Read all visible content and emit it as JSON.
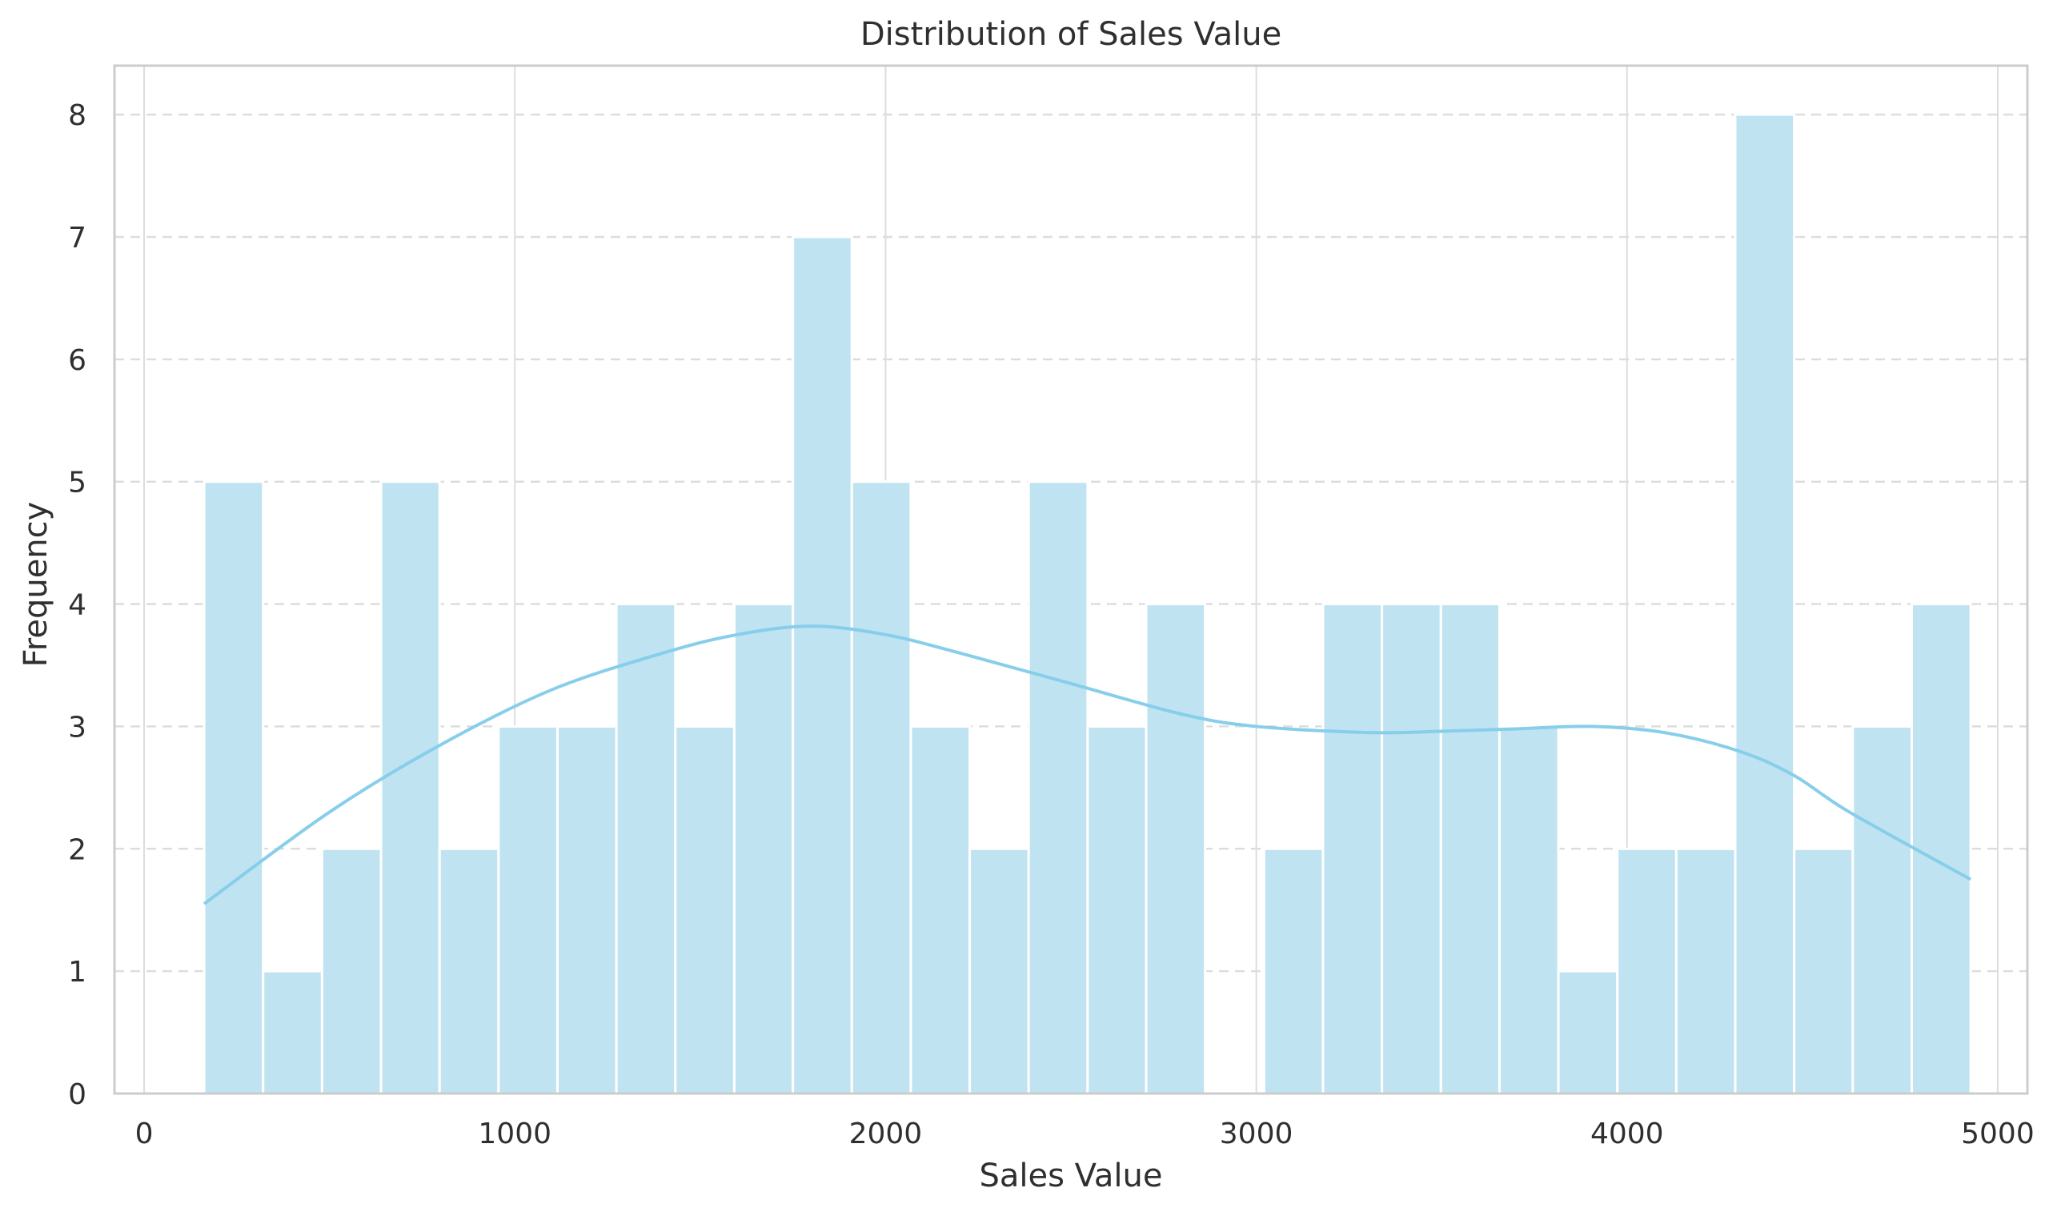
{
  "chart_data": {
    "type": "bar",
    "title": "Distribution of Sales Value",
    "xlabel": "Sales Value",
    "ylabel": "Frequency",
    "xlim": [
      -80,
      5080
    ],
    "ylim": [
      0,
      8.4
    ],
    "xticks": [
      0,
      1000,
      2000,
      3000,
      4000,
      5000
    ],
    "yticks": [
      0,
      1,
      2,
      3,
      4,
      5,
      6,
      7,
      8
    ],
    "grid": true,
    "bar_color": "#bfe3f0",
    "kde_color": "#87ceeb",
    "bins": [
      {
        "x0": 162,
        "x1": 321,
        "count": 5
      },
      {
        "x0": 321,
        "x1": 480,
        "count": 1
      },
      {
        "x0": 480,
        "x1": 639,
        "count": 2
      },
      {
        "x0": 639,
        "x1": 797,
        "count": 5
      },
      {
        "x0": 797,
        "x1": 956,
        "count": 2
      },
      {
        "x0": 956,
        "x1": 1115,
        "count": 3
      },
      {
        "x0": 1115,
        "x1": 1274,
        "count": 3
      },
      {
        "x0": 1274,
        "x1": 1433,
        "count": 4
      },
      {
        "x0": 1433,
        "x1": 1592,
        "count": 3
      },
      {
        "x0": 1592,
        "x1": 1750,
        "count": 4
      },
      {
        "x0": 1750,
        "x1": 1909,
        "count": 7
      },
      {
        "x0": 1909,
        "x1": 2068,
        "count": 5
      },
      {
        "x0": 2068,
        "x1": 2227,
        "count": 3
      },
      {
        "x0": 2227,
        "x1": 2386,
        "count": 2
      },
      {
        "x0": 2386,
        "x1": 2545,
        "count": 5
      },
      {
        "x0": 2545,
        "x1": 2703,
        "count": 3
      },
      {
        "x0": 2703,
        "x1": 2862,
        "count": 4
      },
      {
        "x0": 2862,
        "x1": 3021,
        "count": 0
      },
      {
        "x0": 3021,
        "x1": 3180,
        "count": 2
      },
      {
        "x0": 3180,
        "x1": 3339,
        "count": 4
      },
      {
        "x0": 3339,
        "x1": 3498,
        "count": 4
      },
      {
        "x0": 3498,
        "x1": 3656,
        "count": 4
      },
      {
        "x0": 3656,
        "x1": 3815,
        "count": 3
      },
      {
        "x0": 3815,
        "x1": 3974,
        "count": 1
      },
      {
        "x0": 3974,
        "x1": 4133,
        "count": 2
      },
      {
        "x0": 4133,
        "x1": 4292,
        "count": 2
      },
      {
        "x0": 4292,
        "x1": 4451,
        "count": 8
      },
      {
        "x0": 4451,
        "x1": 4609,
        "count": 2
      },
      {
        "x0": 4609,
        "x1": 4768,
        "count": 3
      },
      {
        "x0": 4768,
        "x1": 4927,
        "count": 4
      }
    ],
    "kde": {
      "x": [
        162,
        500,
        800,
        1100,
        1400,
        1600,
        1800,
        2000,
        2200,
        2500,
        2800,
        3000,
        3300,
        3500,
        3700,
        3900,
        4100,
        4300,
        4450,
        4600,
        4927
      ],
      "y": [
        1.55,
        2.3,
        2.85,
        3.3,
        3.6,
        3.75,
        3.82,
        3.75,
        3.6,
        3.35,
        3.1,
        3.0,
        2.95,
        2.96,
        2.98,
        3.0,
        2.95,
        2.8,
        2.6,
        2.3,
        1.75
      ]
    }
  }
}
